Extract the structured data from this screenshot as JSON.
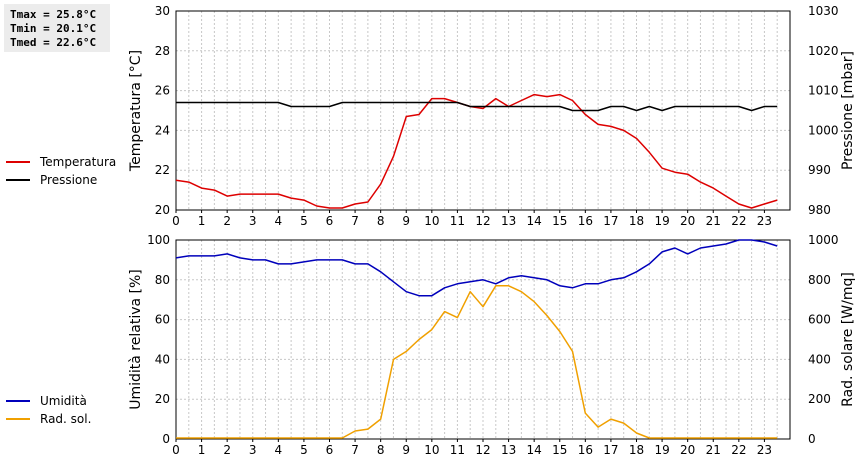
{
  "stats": {
    "tmax": "Tmax = 25.8°C",
    "tmin": "Tmin = 20.1°C",
    "tmed": "Tmed = 22.6°C"
  },
  "colors": {
    "temperature": "#dd0000",
    "pressure": "#000000",
    "humidity": "#0000bb",
    "radiation": "#f0a000",
    "grid": "#c8c8c8"
  },
  "chart_data": [
    {
      "type": "line",
      "xlim": [
        0,
        24
      ],
      "x_ticks": [
        "0",
        "1",
        "2",
        "3",
        "4",
        "5",
        "6",
        "7",
        "8",
        "9",
        "10",
        "11",
        "12",
        "13",
        "14",
        "15",
        "16",
        "17",
        "18",
        "19",
        "20",
        "21",
        "22",
        "23"
      ],
      "ylabel_left": "Temperatura [°C]",
      "ylabel_right": "Pressione [mbar]",
      "ylim_left": [
        20,
        30
      ],
      "ylim_right": [
        980,
        1030
      ],
      "y_ticks_left": [
        "20",
        "22",
        "24",
        "26",
        "28",
        "30"
      ],
      "y_ticks_right": [
        "980",
        "990",
        "1000",
        "1010",
        "1020",
        "1030"
      ],
      "grid": true,
      "legend": "left",
      "series": [
        {
          "name": "Temperatura",
          "axis": "left",
          "x": [
            0,
            0.5,
            1,
            1.5,
            2,
            2.5,
            3,
            3.5,
            4,
            4.5,
            5,
            5.5,
            6,
            6.5,
            7,
            7.5,
            8,
            8.5,
            9,
            9.5,
            10,
            10.5,
            11,
            11.5,
            12,
            12.5,
            13,
            13.5,
            14,
            14.5,
            15,
            15.5,
            16,
            16.5,
            17,
            17.5,
            18,
            18.5,
            19,
            19.5,
            20,
            20.5,
            21,
            21.5,
            22,
            22.5,
            23,
            23.5
          ],
          "y": [
            21.5,
            21.4,
            21.1,
            21.0,
            20.7,
            20.8,
            20.8,
            20.8,
            20.8,
            20.6,
            20.5,
            20.2,
            20.1,
            20.1,
            20.3,
            20.4,
            21.3,
            22.7,
            24.7,
            24.8,
            25.6,
            25.6,
            25.4,
            25.2,
            25.1,
            25.6,
            25.2,
            25.5,
            25.8,
            25.7,
            25.8,
            25.5,
            24.8,
            24.3,
            24.2,
            24.0,
            23.6,
            22.9,
            22.1,
            21.9,
            21.8,
            21.4,
            21.1,
            20.7,
            20.3,
            20.1,
            20.3,
            20.5
          ]
        },
        {
          "name": "Pressione",
          "axis": "right",
          "x": [
            0,
            0.5,
            1,
            1.5,
            2,
            2.5,
            3,
            3.5,
            4,
            4.5,
            5,
            5.5,
            6,
            6.5,
            7,
            7.5,
            8,
            8.5,
            9,
            9.5,
            10,
            10.5,
            11,
            11.5,
            12,
            12.5,
            13,
            13.5,
            14,
            14.5,
            15,
            15.5,
            16,
            16.5,
            17,
            17.5,
            18,
            18.5,
            19,
            19.5,
            20,
            20.5,
            21,
            21.5,
            22,
            22.5,
            23,
            23.5
          ],
          "y": [
            1007,
            1007,
            1007,
            1007,
            1007,
            1007,
            1007,
            1007,
            1007,
            1006,
            1006,
            1006,
            1006,
            1007,
            1007,
            1007,
            1007,
            1007,
            1007,
            1007,
            1007,
            1007,
            1007,
            1006,
            1006,
            1006,
            1006,
            1006,
            1006,
            1006,
            1006,
            1005,
            1005,
            1005,
            1006,
            1006,
            1005,
            1006,
            1005,
            1006,
            1006,
            1006,
            1006,
            1006,
            1006,
            1005,
            1006,
            1006
          ]
        }
      ]
    },
    {
      "type": "line",
      "xlim": [
        0,
        24
      ],
      "x_ticks": [
        "0",
        "1",
        "2",
        "3",
        "4",
        "5",
        "6",
        "7",
        "8",
        "9",
        "10",
        "11",
        "12",
        "13",
        "14",
        "15",
        "16",
        "17",
        "18",
        "19",
        "20",
        "21",
        "22",
        "23"
      ],
      "ylabel_left": "Umidità relativa [%]",
      "ylabel_right": "Rad. solare [W/mq]",
      "ylim_left": [
        0,
        100
      ],
      "ylim_right": [
        0,
        1000
      ],
      "y_ticks_left": [
        "0",
        "20",
        "40",
        "60",
        "80",
        "100"
      ],
      "y_ticks_right": [
        "0",
        "200",
        "400",
        "600",
        "800",
        "1000"
      ],
      "grid": true,
      "legend": "left",
      "series": [
        {
          "name": "Umidità",
          "axis": "left",
          "x": [
            0,
            0.5,
            1,
            1.5,
            2,
            2.5,
            3,
            3.5,
            4,
            4.5,
            5,
            5.5,
            6,
            6.5,
            7,
            7.5,
            8,
            8.5,
            9,
            9.5,
            10,
            10.5,
            11,
            11.5,
            12,
            12.5,
            13,
            13.5,
            14,
            14.5,
            15,
            15.5,
            16,
            16.5,
            17,
            17.5,
            18,
            18.5,
            19,
            19.5,
            20,
            20.5,
            21,
            21.5,
            22,
            22.5,
            23,
            23.5
          ],
          "y": [
            91,
            92,
            92,
            92,
            93,
            91,
            90,
            90,
            88,
            88,
            89,
            90,
            90,
            90,
            88,
            88,
            84,
            79,
            74,
            72,
            72,
            76,
            78,
            79,
            80,
            78,
            81,
            82,
            81,
            80,
            77,
            76,
            78,
            78,
            80,
            81,
            84,
            88,
            94,
            96,
            93,
            96,
            97,
            98,
            100,
            100,
            99,
            97
          ]
        },
        {
          "name": "Rad. sol.",
          "axis": "right",
          "x": [
            0,
            0.5,
            1,
            1.5,
            2,
            2.5,
            3,
            3.5,
            4,
            4.5,
            5,
            5.5,
            6,
            6.5,
            7,
            7.5,
            8,
            8.5,
            9,
            9.5,
            10,
            10.5,
            11,
            11.5,
            12,
            12.5,
            13,
            13.5,
            14,
            14.5,
            15,
            15.5,
            16,
            16.5,
            17,
            17.5,
            18,
            18.5,
            19,
            19.5,
            20,
            20.5,
            21,
            21.5,
            22,
            22.5,
            23,
            23.5
          ],
          "y": [
            5,
            5,
            5,
            5,
            5,
            5,
            5,
            5,
            5,
            5,
            5,
            5,
            5,
            5,
            40,
            50,
            100,
            400,
            440,
            500,
            550,
            640,
            610,
            740,
            665,
            770,
            770,
            740,
            690,
            620,
            540,
            440,
            130,
            60,
            100,
            80,
            30,
            5,
            5,
            5,
            5,
            5,
            5,
            5,
            5,
            5,
            5,
            5
          ]
        }
      ]
    }
  ]
}
